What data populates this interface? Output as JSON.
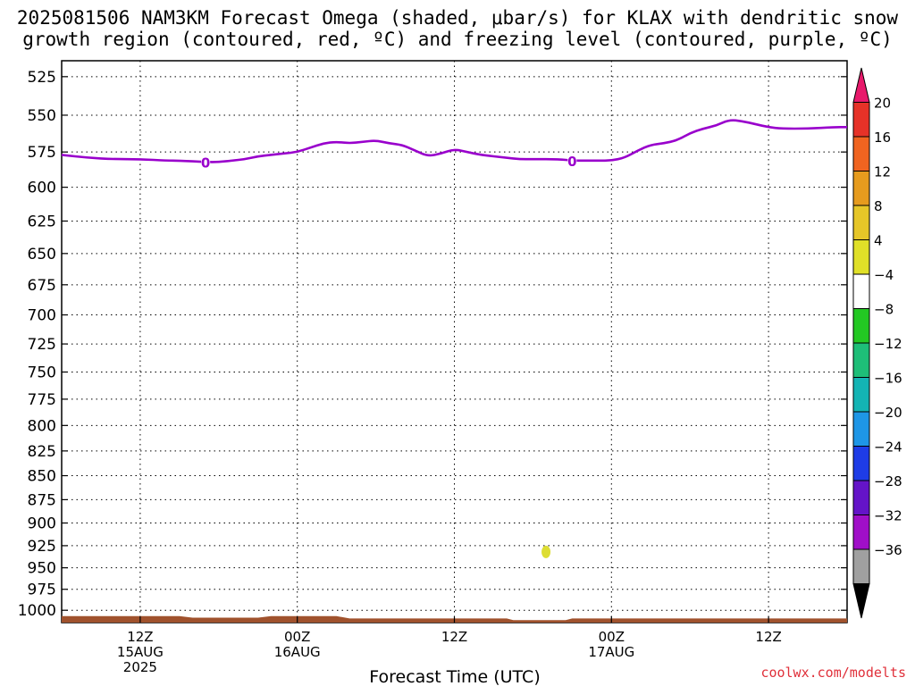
{
  "title": {
    "line1": "2025081506 NAM3KM Forecast Omega (shaded, μbar/s) for KLAX with dendritic snow",
    "line2": "growth region (contoured, red, ºC) and freezing level (contoured, purple, ºC)"
  },
  "credit": "coolwx.com/modelts",
  "chart_data": {
    "type": "line",
    "xlabel": "Forecast Time (UTC)",
    "ylabel": "",
    "x_ticks": [
      {
        "hour": 6,
        "lines": [
          "12Z",
          "15AUG",
          "2025"
        ]
      },
      {
        "hour": 18,
        "lines": [
          "00Z",
          "16AUG"
        ]
      },
      {
        "hour": 30,
        "lines": [
          "12Z"
        ]
      },
      {
        "hour": 42,
        "lines": [
          "00Z",
          "17AUG"
        ]
      },
      {
        "hour": 54,
        "lines": [
          "12Z"
        ]
      }
    ],
    "xlim": [
      0,
      60
    ],
    "y_ticks": [
      525,
      550,
      575,
      600,
      625,
      650,
      675,
      700,
      725,
      750,
      775,
      800,
      825,
      850,
      875,
      900,
      925,
      950,
      975,
      1000
    ],
    "ylim": [
      1015,
      515
    ],
    "y_scale": "log-pressure",
    "grid": true,
    "series": [
      {
        "contour_label": "0",
        "color": "#9900cc",
        "points": [
          [
            0,
            577
          ],
          [
            2,
            579
          ],
          [
            4,
            580
          ],
          [
            6,
            580
          ],
          [
            8,
            581
          ],
          [
            9,
            581
          ],
          [
            11,
            582
          ],
          [
            12,
            582
          ],
          [
            13,
            581
          ],
          [
            14,
            580
          ],
          [
            15,
            578
          ],
          [
            16,
            577
          ],
          [
            17,
            576
          ],
          [
            18,
            575
          ],
          [
            19,
            572
          ],
          [
            20,
            569
          ],
          [
            21,
            568
          ],
          [
            22,
            569
          ],
          [
            23,
            568
          ],
          [
            24,
            567
          ],
          [
            25,
            569
          ],
          [
            26,
            570
          ],
          [
            27,
            574
          ],
          [
            28,
            578
          ],
          [
            29,
            576
          ],
          [
            30,
            573
          ],
          [
            31,
            575
          ],
          [
            32,
            577
          ],
          [
            34,
            579
          ],
          [
            35,
            580
          ],
          [
            36,
            580
          ],
          [
            38,
            580
          ],
          [
            39,
            581
          ],
          [
            40,
            581
          ],
          [
            41,
            581
          ],
          [
            42,
            581
          ],
          [
            43,
            579
          ],
          [
            44,
            574
          ],
          [
            45,
            570
          ],
          [
            46,
            569
          ],
          [
            47,
            567
          ],
          [
            48,
            562
          ],
          [
            49,
            559
          ],
          [
            50,
            557
          ],
          [
            51,
            553
          ],
          [
            52,
            554
          ],
          [
            53,
            556
          ],
          [
            54,
            558
          ],
          [
            55,
            559
          ],
          [
            57,
            559
          ],
          [
            59,
            558
          ],
          [
            60,
            558
          ]
        ]
      }
    ],
    "labels_on_contour": [
      {
        "hour": 11,
        "text": "0"
      },
      {
        "hour": 39,
        "text": "0"
      }
    ],
    "shaded_omega": [
      {
        "hour": 37,
        "pressure": 932,
        "value_range": [
          4,
          8
        ],
        "color": "#dddd33"
      }
    ],
    "terrain": {
      "color": "#a0522d",
      "points": [
        [
          0,
          1007
        ],
        [
          9,
          1007
        ],
        [
          10,
          1009
        ],
        [
          15,
          1009
        ],
        [
          16,
          1007
        ],
        [
          21,
          1007
        ],
        [
          22,
          1010
        ],
        [
          34,
          1010
        ],
        [
          34.5,
          1012
        ],
        [
          38.5,
          1012
        ],
        [
          39,
          1010
        ],
        [
          60,
          1010
        ]
      ]
    },
    "colorbar": {
      "labels": [
        "20",
        "16",
        "12",
        "8",
        "4",
        "−4",
        "−8",
        "−12",
        "−16",
        "−20",
        "−24",
        "−28",
        "−32",
        "−36"
      ],
      "colors": [
        "#e8196b",
        "#e63228",
        "#f06420",
        "#e69b1e",
        "#e6c628",
        "#e0e028",
        "#ffffff",
        "#23c823",
        "#1ebe78",
        "#14b4b4",
        "#1e96e6",
        "#1e3ce6",
        "#6414c8",
        "#a00fc8",
        "#a0a0a0",
        "#000000"
      ]
    }
  }
}
